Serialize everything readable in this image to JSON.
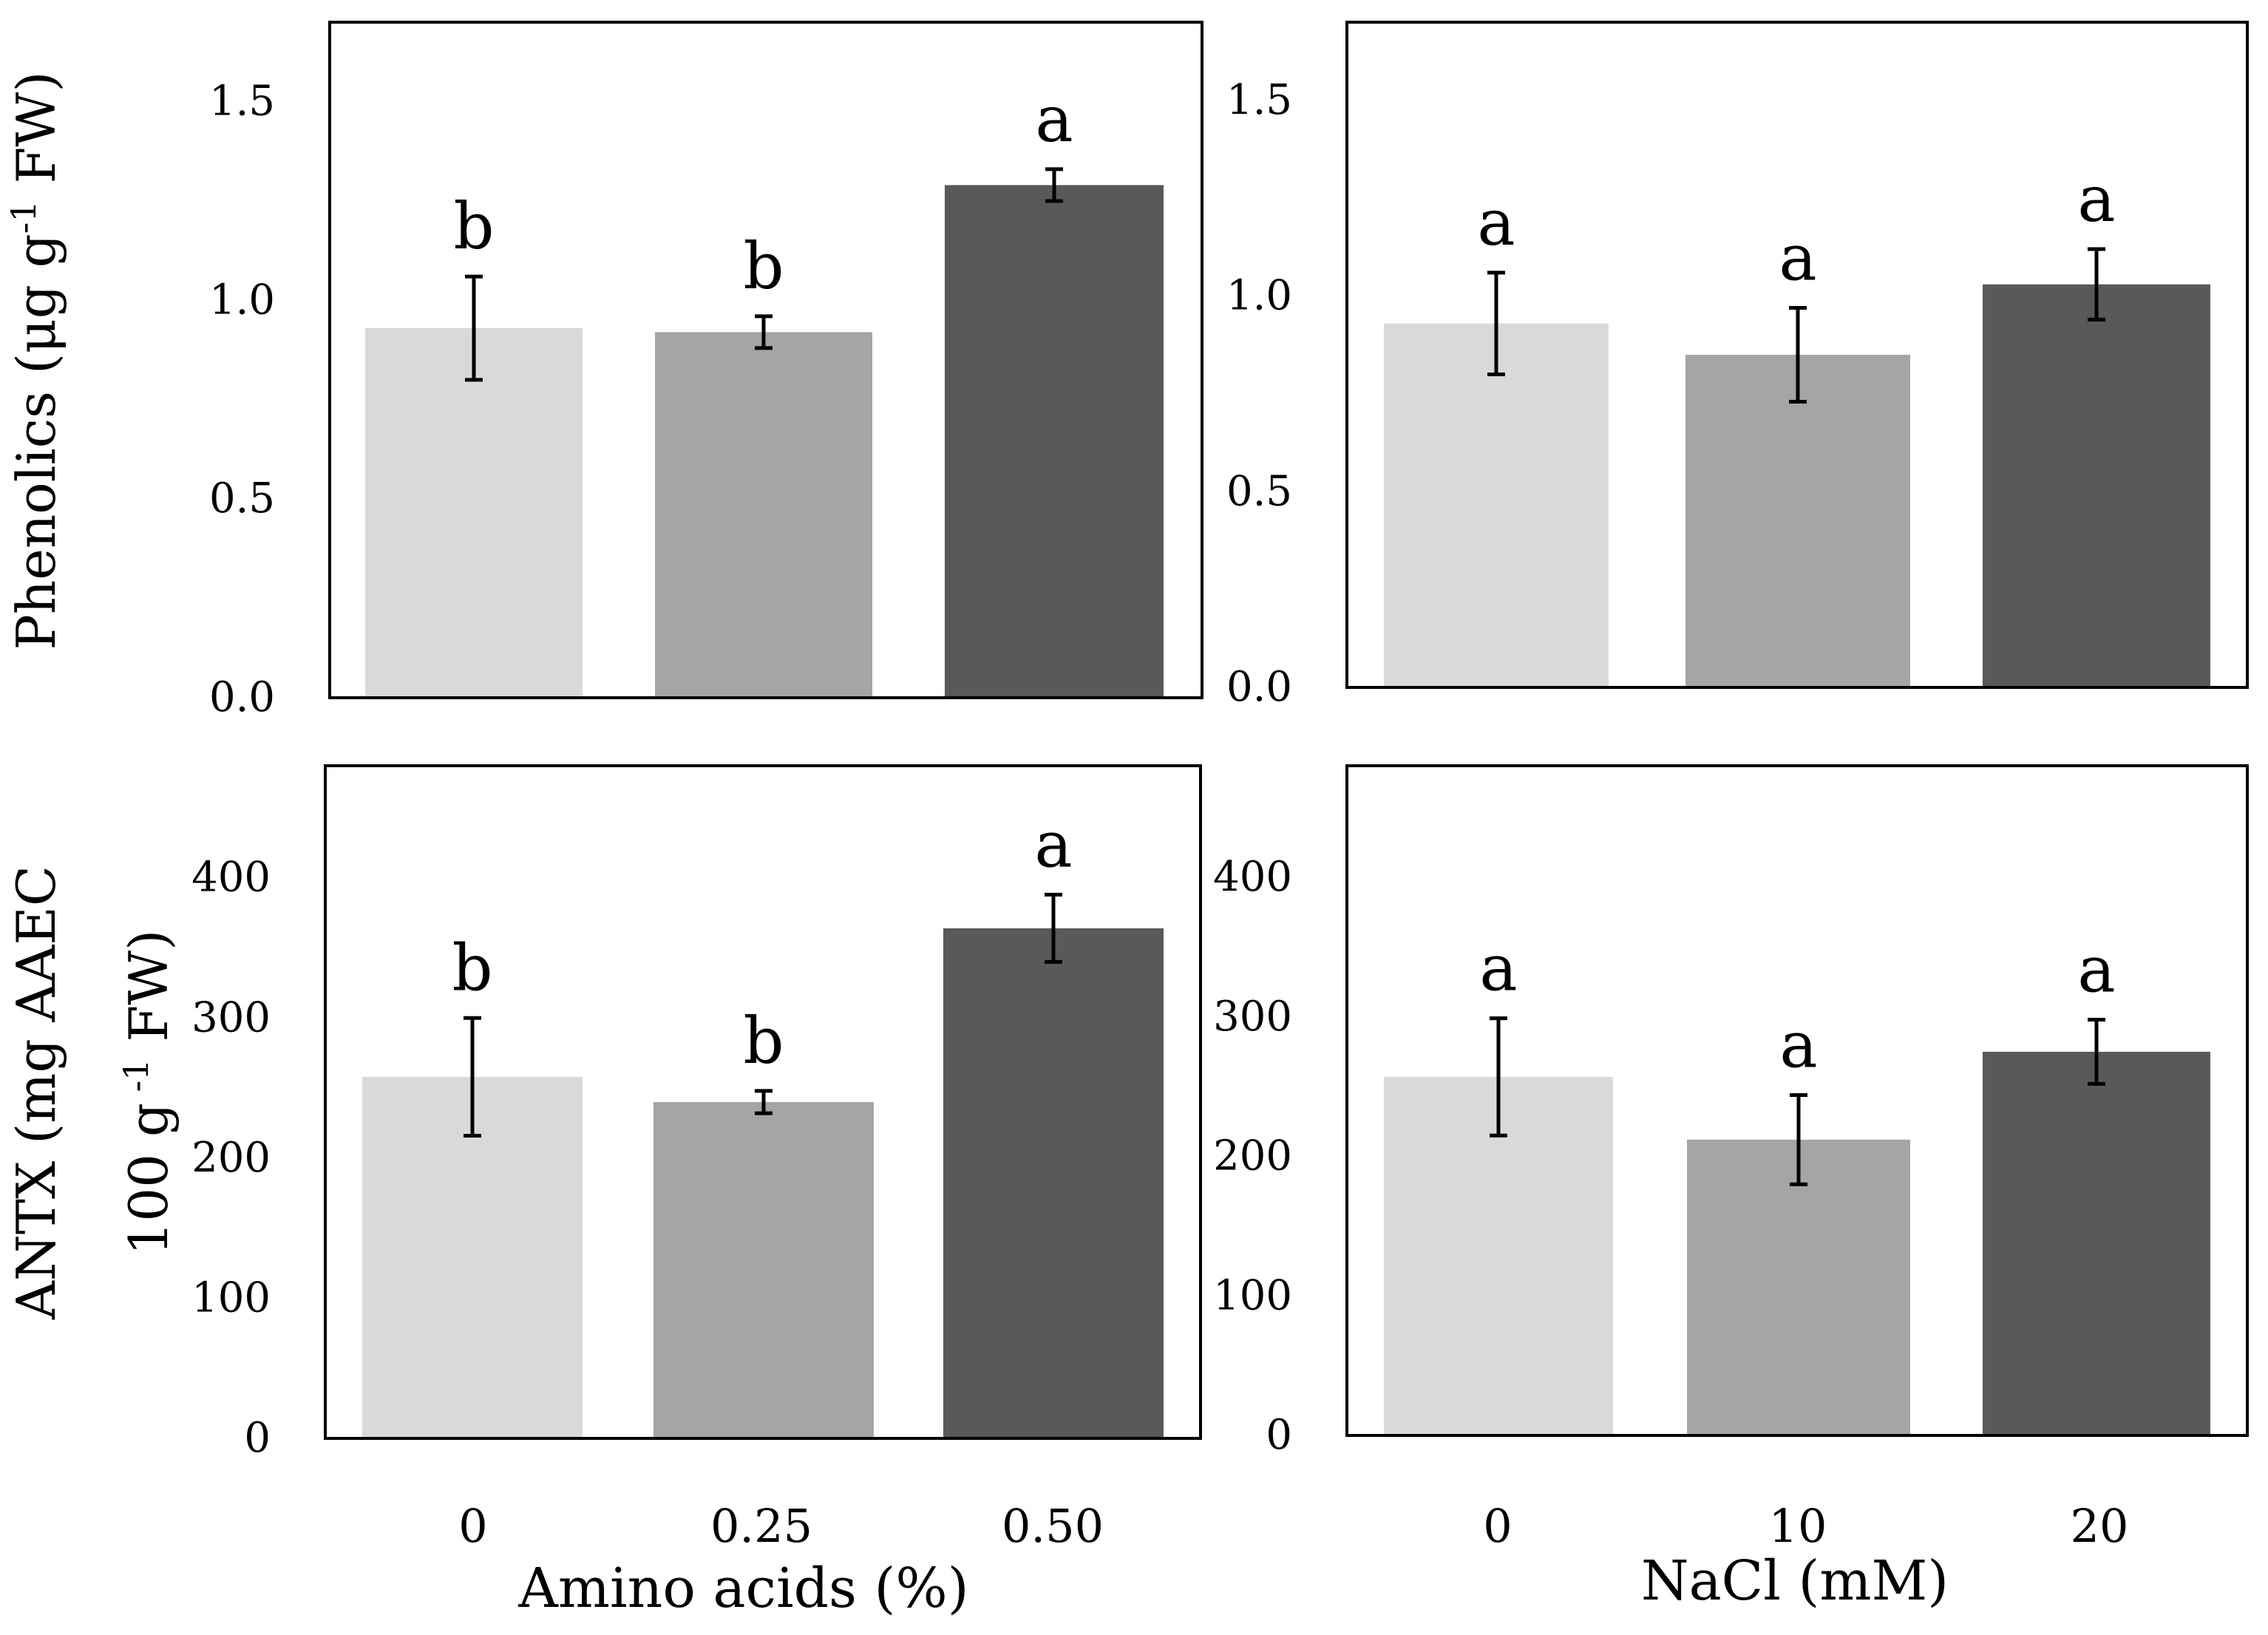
{
  "figure": {
    "ylabels": {
      "phenolics": "Phenolics (μg g",
      "phenolics_sup": "-1",
      "phenolics_end": " FW)",
      "antx_line1": "ANTX (mg AAEC",
      "antx_line2_a": "100 g",
      "antx_line2_sup": " -1",
      "antx_line2_b": " FW)"
    },
    "xlabels": {
      "left": "Amino acids (%)",
      "right": "NaCl (mM)"
    },
    "xticks": {
      "left": [
        "0",
        "0.25",
        "0.50"
      ],
      "right": [
        "0",
        "10",
        "20"
      ]
    },
    "colors": [
      "#d9d9d9",
      "#a5a5a5",
      "#595959"
    ]
  },
  "chart_data": [
    {
      "type": "bar",
      "panel": "top-left",
      "categories": [
        "0",
        "0.25",
        "0.50"
      ],
      "values": [
        0.93,
        0.92,
        1.29
      ],
      "errors": [
        0.13,
        0.04,
        0.04
      ],
      "significance": [
        "b",
        "b",
        "a"
      ],
      "ylim": [
        0,
        1.7
      ],
      "yticks": [
        "0.0",
        "0.5",
        "1.0",
        "1.5"
      ],
      "ytick_values": [
        0,
        0.5,
        1.0,
        1.5
      ],
      "ylabel": "Phenolics (μg g-1 FW)",
      "xlabel": ""
    },
    {
      "type": "bar",
      "panel": "top-right",
      "categories": [
        "0",
        "10",
        "20"
      ],
      "values": [
        0.93,
        0.85,
        1.03
      ],
      "errors": [
        0.13,
        0.12,
        0.09
      ],
      "significance": [
        "a",
        "a",
        "a"
      ],
      "ylim": [
        0,
        1.7
      ],
      "yticks": [
        "0.0",
        "0.5",
        "1.0",
        "1.5"
      ],
      "ytick_values": [
        0,
        0.5,
        1.0,
        1.5
      ],
      "ylabel": "",
      "xlabel": ""
    },
    {
      "type": "bar",
      "panel": "bottom-left",
      "categories": [
        "0",
        "0.25",
        "0.50"
      ],
      "values": [
        258,
        240,
        364
      ],
      "errors": [
        42,
        8,
        24
      ],
      "significance": [
        "b",
        "b",
        "a"
      ],
      "ylim": [
        0,
        480
      ],
      "yticks": [
        "0",
        "100",
        "200",
        "300",
        "400"
      ],
      "ytick_values": [
        0,
        100,
        200,
        300,
        400
      ],
      "ylabel": "ANTX (mg AAEC 100 g -1 FW)",
      "xlabel": "Amino acids (%)"
    },
    {
      "type": "bar",
      "panel": "bottom-right",
      "categories": [
        "0",
        "10",
        "20"
      ],
      "values": [
        257,
        212,
        275
      ],
      "errors": [
        42,
        32,
        23
      ],
      "significance": [
        "a",
        "a",
        "a"
      ],
      "ylim": [
        0,
        480
      ],
      "yticks": [
        "0",
        "100",
        "200",
        "300",
        "400"
      ],
      "ytick_values": [
        0,
        100,
        200,
        300,
        400
      ],
      "ylabel": "",
      "xlabel": "NaCl (mM)"
    }
  ]
}
